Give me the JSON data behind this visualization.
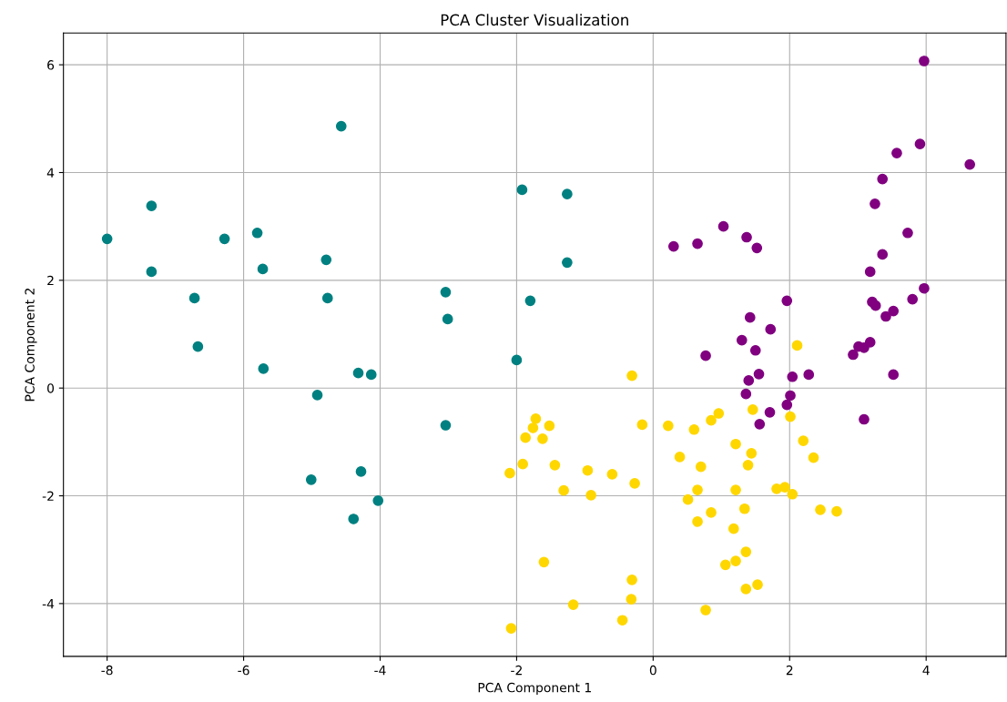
{
  "chart_data": {
    "type": "scatter",
    "title": "PCA Cluster Visualization",
    "xlabel": "PCA Component 1",
    "ylabel": "PCA Component 2",
    "xlim": [
      -8.64,
      5.17
    ],
    "ylim": [
      -4.98,
      6.59
    ],
    "xticks": [
      -8,
      -6,
      -4,
      -2,
      0,
      2,
      4
    ],
    "yticks": [
      -4,
      -2,
      0,
      2,
      4,
      6
    ],
    "grid": true,
    "marker": "circle",
    "series": [
      {
        "color": "#008080",
        "x": [
          -8.0,
          -7.35,
          -7.35,
          -6.72,
          -6.67,
          -6.28,
          -5.8,
          -5.72,
          -5.71,
          -5.01,
          -4.92,
          -4.79,
          -4.77,
          -4.57,
          -4.39,
          -4.32,
          -4.28,
          -4.13,
          -4.03,
          -3.04,
          -3.01,
          -3.04,
          -2.0,
          -1.92,
          -1.8,
          -1.26,
          -1.26
        ],
        "values": [
          2.77,
          3.38,
          2.16,
          1.67,
          0.77,
          2.77,
          2.88,
          2.21,
          0.36,
          -1.7,
          -0.13,
          2.38,
          1.67,
          4.86,
          -2.43,
          0.28,
          -1.55,
          0.25,
          -2.09,
          1.78,
          1.28,
          -0.69,
          0.52,
          3.68,
          1.62,
          3.6,
          2.33
        ]
      },
      {
        "color": "#800080",
        "x": [
          3.97,
          4.64,
          3.91,
          3.57,
          3.36,
          3.25,
          0.3,
          0.65,
          1.03,
          1.37,
          1.52,
          0.77,
          1.42,
          1.72,
          1.3,
          1.5,
          1.96,
          1.4,
          1.55,
          1.36,
          1.71,
          1.56,
          2.04,
          2.28,
          2.01,
          1.96,
          3.18,
          3.36,
          3.73,
          3.97,
          3.8,
          3.21,
          3.26,
          3.52,
          3.41,
          2.93,
          3.01,
          3.09,
          3.18,
          3.52,
          3.09
        ],
        "values": [
          6.07,
          4.15,
          4.53,
          4.36,
          3.88,
          3.42,
          2.63,
          2.68,
          3.0,
          2.8,
          2.6,
          0.6,
          1.31,
          1.09,
          0.89,
          0.7,
          1.62,
          0.14,
          0.26,
          -0.11,
          -0.45,
          -0.67,
          0.21,
          0.25,
          -0.14,
          -0.31,
          2.16,
          2.48,
          2.88,
          1.85,
          1.65,
          1.6,
          1.53,
          1.43,
          1.33,
          0.62,
          0.77,
          0.75,
          0.85,
          0.25,
          -0.58
        ]
      },
      {
        "color": "#ffd700",
        "x": [
          -0.31,
          2.11,
          -0.16,
          0.22,
          0.6,
          0.96,
          0.85,
          1.46,
          2.01,
          -1.72,
          -1.76,
          -1.52,
          -1.87,
          -1.62,
          -1.91,
          -2.1,
          -1.44,
          -1.31,
          -0.96,
          -0.91,
          -0.6,
          -0.27,
          0.39,
          0.7,
          1.21,
          1.44,
          1.39,
          0.51,
          0.65,
          1.21,
          0.65,
          0.85,
          1.34,
          1.81,
          1.93,
          2.04,
          2.2,
          2.35,
          2.45,
          2.69,
          1.18,
          1.36,
          1.21,
          1.06,
          1.36,
          1.53,
          0.77,
          -1.6,
          -1.17,
          -0.31,
          -0.32,
          -0.45,
          -2.08
        ],
        "values": [
          0.23,
          0.79,
          -0.68,
          -0.7,
          -0.77,
          -0.47,
          -0.6,
          -0.4,
          -0.53,
          -0.57,
          -0.74,
          -0.7,
          -0.92,
          -0.94,
          -1.41,
          -1.58,
          -1.43,
          -1.9,
          -1.53,
          -1.99,
          -1.6,
          -1.77,
          -1.28,
          -1.46,
          -1.04,
          -1.21,
          -1.43,
          -2.07,
          -1.89,
          -1.89,
          -2.48,
          -2.31,
          -2.24,
          -1.87,
          -1.84,
          -1.97,
          -0.98,
          -1.29,
          -2.26,
          -2.29,
          -2.61,
          -3.04,
          -3.21,
          -3.28,
          -3.73,
          -3.65,
          -4.12,
          -3.23,
          -4.02,
          -3.56,
          -3.92,
          -4.31,
          -4.46
        ]
      }
    ]
  }
}
